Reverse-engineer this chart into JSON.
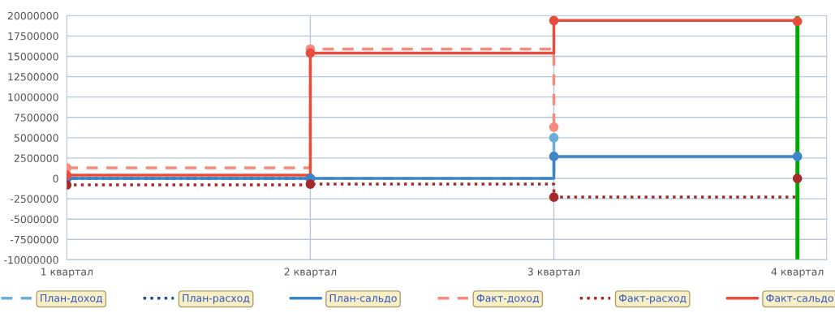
{
  "chart_data": {
    "type": "step",
    "categories": [
      "1 квартал",
      "2 квартал",
      "3 квартал",
      "4 квартал"
    ],
    "series": [
      {
        "name": "План-доход",
        "color": "#6baed6",
        "line_style": "dashed",
        "values": [
          0,
          0,
          5000000,
          null
        ]
      },
      {
        "name": "План-расход",
        "color": "#1f4e99",
        "line_style": "dotted",
        "values": [
          0,
          0,
          null,
          null
        ]
      },
      {
        "name": "План-сальдо",
        "color": "#3d85c6",
        "line_style": "solid",
        "values": [
          0,
          0,
          2700000,
          2700000
        ]
      },
      {
        "name": "Факт-доход",
        "color": "#f88a7e",
        "line_style": "dashed",
        "values": [
          1300000,
          15900000,
          6300000,
          null
        ]
      },
      {
        "name": "Факт-расход",
        "color": "#a52a2a",
        "line_style": "dotted",
        "values": [
          -800000,
          -700000,
          -2300000,
          0
        ]
      },
      {
        "name": "Факт-сальдо",
        "color": "#e74c3c",
        "line_style": "solid",
        "values": [
          400000,
          15400000,
          19400000,
          19300000
        ]
      }
    ],
    "ylim": [
      -10000000,
      20000000
    ],
    "yticks": [
      -10000000,
      -7500000,
      -5000000,
      -2500000,
      0,
      2500000,
      5000000,
      7500000,
      10000000,
      12500000,
      15000000,
      17500000,
      20000000
    ],
    "ref_lines": [
      {
        "axis": "x",
        "value": "4 квартал",
        "color": "#00aa00"
      }
    ],
    "grid": true,
    "legend": "bottom",
    "marker": "circle"
  }
}
